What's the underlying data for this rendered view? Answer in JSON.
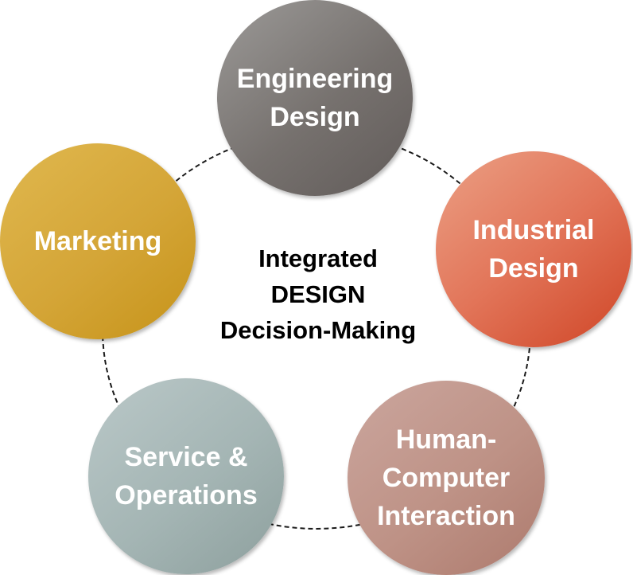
{
  "center": {
    "line1": "Integrated",
    "line2": "DESIGN",
    "line3": "Decision-Making"
  },
  "nodes": {
    "engineering": {
      "line1": "Engineering",
      "line2": "Design",
      "color": "#7a7573"
    },
    "industrial": {
      "line1": "Industrial",
      "line2": "Design",
      "color": "#e07052"
    },
    "hci": {
      "line1": "Human-",
      "line2": "Computer",
      "line3": "Interaction",
      "color": "#bf9489"
    },
    "service": {
      "line1": "Service &",
      "line2": "Operations",
      "color": "#a5b6b5"
    },
    "marketing": {
      "line1": "Marketing",
      "color": "#d4a331"
    }
  }
}
